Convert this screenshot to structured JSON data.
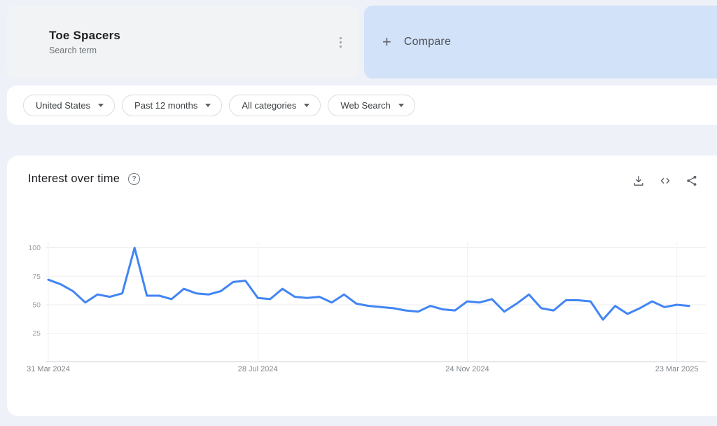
{
  "page": {
    "background": "#eef1f8",
    "accent_blue": "#4285f4"
  },
  "term_card": {
    "term": "Toe Spacers",
    "subtitle": "Search term",
    "dot_color": "#4285f4",
    "menu_icon": "kebab-menu-icon"
  },
  "compare_card": {
    "plus": "+",
    "label": "Compare",
    "background": "#d2e2f8"
  },
  "filters": [
    {
      "label": "United States"
    },
    {
      "label": "Past 12 months"
    },
    {
      "label": "All categories"
    },
    {
      "label": "Web Search"
    }
  ],
  "chart_section": {
    "title": "Interest over time",
    "help_glyph": "?",
    "action_icons": [
      "download-icon",
      "embed-icon",
      "share-icon"
    ]
  },
  "chart_data": {
    "type": "line",
    "title": "Interest over time",
    "series": [
      {
        "name": "Toe Spacers",
        "color": "#4285f4",
        "values": [
          72,
          68,
          62,
          52,
          59,
          57,
          60,
          100,
          58,
          58,
          55,
          64,
          60,
          59,
          62,
          70,
          71,
          56,
          55,
          64,
          57,
          56,
          57,
          52,
          59,
          51,
          49,
          48,
          47,
          45,
          44,
          49,
          46,
          45,
          53,
          52,
          55,
          44,
          51,
          59,
          47,
          45,
          54,
          54,
          53,
          37,
          49,
          42,
          47,
          53,
          48,
          50,
          49
        ]
      }
    ],
    "x_tick_labels": [
      {
        "index": 0,
        "label": "31 Mar 2024"
      },
      {
        "index": 17,
        "label": "28 Jul 2024"
      },
      {
        "index": 34,
        "label": "24 Nov 2024"
      },
      {
        "index": 51,
        "label": "23 Mar 2025"
      }
    ],
    "y_ticks": [
      25,
      50,
      75,
      100
    ],
    "ylim": [
      0,
      100
    ],
    "grid": true,
    "legend_position": "none",
    "xlabel": "",
    "ylabel": ""
  }
}
